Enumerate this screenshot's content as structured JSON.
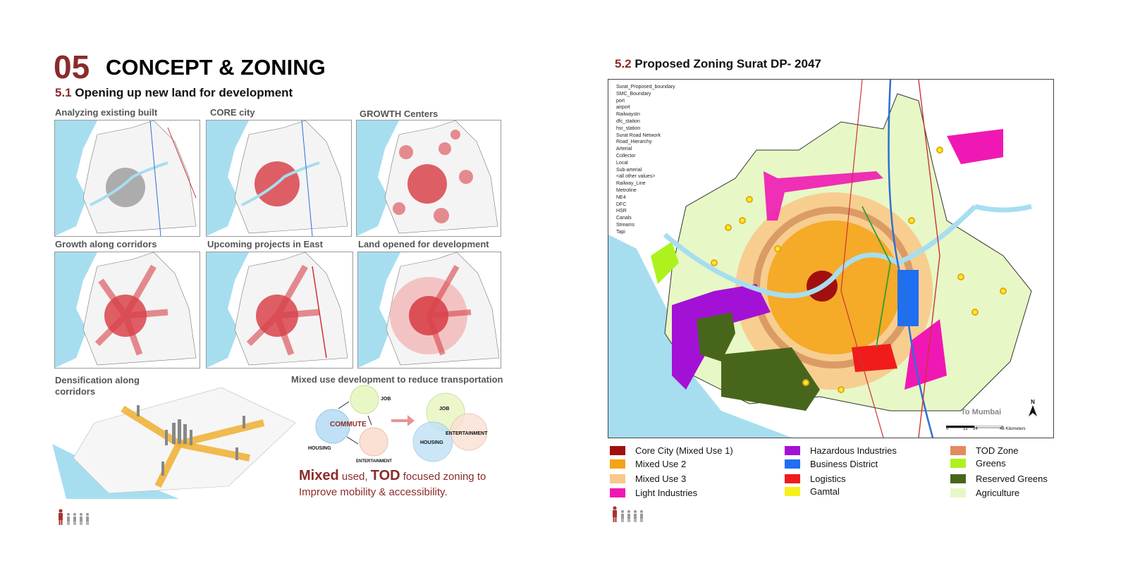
{
  "left": {
    "section_number": "05",
    "section_title": "CONCEPT & ZONING",
    "sub_number": "5.1",
    "sub_title": "Opening up new land for development",
    "panels": [
      {
        "caption": "Analyzing existing built"
      },
      {
        "caption": "CORE city"
      },
      {
        "caption": "GROWTH Centers"
      },
      {
        "caption": "Growth along corridors"
      },
      {
        "caption": "Upcoming projects in East"
      },
      {
        "caption": "Land opened for development"
      }
    ],
    "densification_caption": "Densification along corridors",
    "mixed_use_caption": "Mixed use development to reduce transportation",
    "diagram": {
      "job": "JOB",
      "commute": "COMMUTE",
      "housing": "HOUSING",
      "entertainment": "ENTERTAINMENT",
      "job2": "JOB",
      "housing2": "HOUSING",
      "entertainment2": "ENTERTAINMENT"
    },
    "statement": {
      "bold1": "Mixed",
      "text1": " used, ",
      "bold2": "TOD",
      "text2": " focused zoning to",
      "line2": "Improve mobility & accessibility."
    }
  },
  "right": {
    "sub_number": "5.2",
    "sub_title": "Proposed Zoning Surat DP- 2047",
    "map_legend": [
      "Surat_Proposed_boundary",
      "SMC_Boundary",
      "port",
      "airport",
      "Railwaystn",
      "dfc_station",
      "hsr_station",
      "Surat Road Network",
      "Road_Hierarchy",
      "Arterial",
      "Collector",
      "Local",
      "Sub-arterial",
      "<all other values>",
      "Railway_Line",
      "Metroline",
      "NE4",
      "DFC",
      "HSR",
      "Canals",
      "Streams",
      "Tapi"
    ],
    "to_mumbai": "To Mumbai",
    "north": "N",
    "scale_labels": [
      "0",
      "12",
      "24",
      "48 Kilometers"
    ],
    "zoning_legend": [
      {
        "label": "Core City (Mixed Use 1)",
        "color": "#a10f0f"
      },
      {
        "label": "Mixed Use 2",
        "color": "#f5a316"
      },
      {
        "label": "Mixed Use 3",
        "color": "#f8c98a"
      },
      {
        "label": "Light Industries",
        "color": "#f018b4"
      },
      {
        "label": "Hazardous Industries",
        "color": "#a411d6"
      },
      {
        "label": "Business District",
        "color": "#1f6ff2"
      },
      {
        "label": "Logistics",
        "color": "#f01c1c"
      },
      {
        "label": "Gamtal",
        "color": "#f7ef1a"
      },
      {
        "label": "TOD Zone",
        "color": "#e58a5e"
      },
      {
        "label": "Greens",
        "color": "#adf21e"
      },
      {
        "label": "Reserved Greens",
        "color": "#47661c"
      },
      {
        "label": "Agriculture",
        "color": "#e8f7c6"
      }
    ]
  },
  "colors": {
    "accent": "#8b2b2b",
    "water": "#a6def0",
    "core_red": "#d9434b"
  },
  "icons": [
    "people-icon"
  ]
}
